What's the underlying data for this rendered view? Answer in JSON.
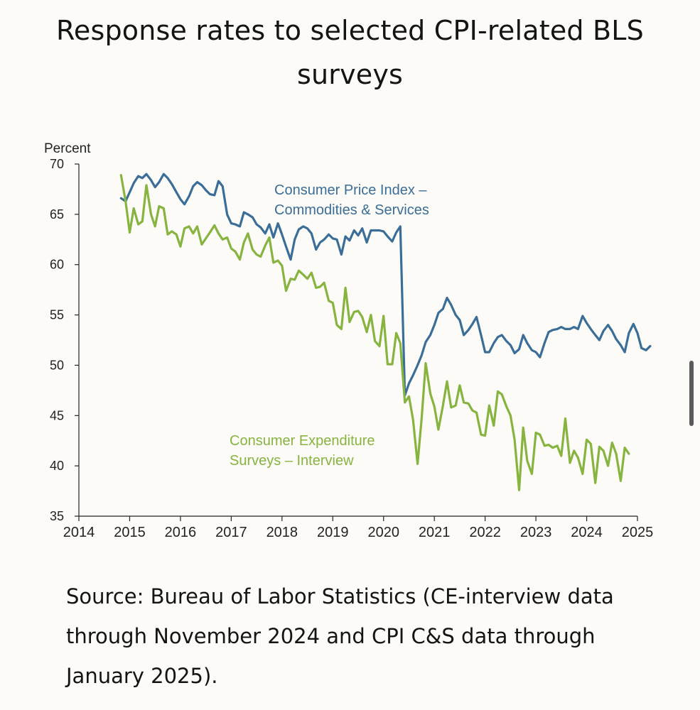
{
  "title": "Response rates to selected CPI-related BLS surveys",
  "source": "Source: Bureau of Labor Statistics (CE-interview data through November 2024 and CPI C&S data through January 2025).",
  "chart_data": {
    "type": "line",
    "ylabel": "Percent",
    "ylim": [
      35,
      70
    ],
    "yticks": [
      "35",
      "40",
      "45",
      "50",
      "55",
      "60",
      "65",
      "70"
    ],
    "xlim": [
      2014,
      2025
    ],
    "xticks": [
      "2014",
      "2015",
      "2016",
      "2017",
      "2018",
      "2019",
      "2020",
      "2021",
      "2022",
      "2023",
      "2024",
      "2025"
    ],
    "grid": false,
    "series": [
      {
        "name": "Consumer Price Index – Commodities & Services",
        "color": "#3a6d98",
        "points": [
          [
            2014.83,
            66.6
          ],
          [
            2014.92,
            66.3
          ],
          [
            2015.0,
            67.2
          ],
          [
            2015.08,
            68.1
          ],
          [
            2015.17,
            68.8
          ],
          [
            2015.25,
            68.6
          ],
          [
            2015.33,
            69.0
          ],
          [
            2015.42,
            68.4
          ],
          [
            2015.5,
            67.7
          ],
          [
            2015.58,
            68.2
          ],
          [
            2015.67,
            69.0
          ],
          [
            2015.75,
            68.6
          ],
          [
            2015.83,
            68.0
          ],
          [
            2015.92,
            67.2
          ],
          [
            2016.0,
            66.5
          ],
          [
            2016.08,
            66.0
          ],
          [
            2016.17,
            66.8
          ],
          [
            2016.25,
            67.8
          ],
          [
            2016.33,
            68.2
          ],
          [
            2016.42,
            67.9
          ],
          [
            2016.5,
            67.4
          ],
          [
            2016.58,
            67.0
          ],
          [
            2016.67,
            66.9
          ],
          [
            2016.75,
            68.3
          ],
          [
            2016.83,
            67.8
          ],
          [
            2016.92,
            65.0
          ],
          [
            2017.0,
            64.1
          ],
          [
            2017.08,
            64.0
          ],
          [
            2017.17,
            63.8
          ],
          [
            2017.25,
            65.2
          ],
          [
            2017.33,
            65.0
          ],
          [
            2017.42,
            64.7
          ],
          [
            2017.5,
            64.0
          ],
          [
            2017.58,
            63.7
          ],
          [
            2017.67,
            63.1
          ],
          [
            2017.75,
            64.0
          ],
          [
            2017.83,
            62.7
          ],
          [
            2017.92,
            64.1
          ],
          [
            2018.0,
            63.0
          ],
          [
            2018.08,
            61.8
          ],
          [
            2018.17,
            60.5
          ],
          [
            2018.25,
            62.5
          ],
          [
            2018.33,
            63.5
          ],
          [
            2018.42,
            63.8
          ],
          [
            2018.5,
            63.6
          ],
          [
            2018.58,
            63.1
          ],
          [
            2018.67,
            61.5
          ],
          [
            2018.75,
            62.2
          ],
          [
            2018.83,
            62.5
          ],
          [
            2018.92,
            63.0
          ],
          [
            2019.0,
            62.6
          ],
          [
            2019.08,
            62.5
          ],
          [
            2019.17,
            61.0
          ],
          [
            2019.25,
            62.8
          ],
          [
            2019.33,
            62.4
          ],
          [
            2019.42,
            63.4
          ],
          [
            2019.5,
            62.9
          ],
          [
            2019.58,
            63.6
          ],
          [
            2019.67,
            62.2
          ],
          [
            2019.75,
            63.4
          ],
          [
            2019.83,
            63.4
          ],
          [
            2019.92,
            63.4
          ],
          [
            2020.0,
            63.3
          ],
          [
            2020.08,
            62.8
          ],
          [
            2020.17,
            62.3
          ],
          [
            2020.25,
            63.2
          ],
          [
            2020.33,
            63.8
          ],
          [
            2020.42,
            47.0
          ],
          [
            2020.5,
            48.2
          ],
          [
            2020.58,
            49.0
          ],
          [
            2020.67,
            50.0
          ],
          [
            2020.75,
            51.0
          ],
          [
            2020.83,
            52.3
          ],
          [
            2020.92,
            53.0
          ],
          [
            2021.0,
            54.0
          ],
          [
            2021.08,
            55.2
          ],
          [
            2021.17,
            55.6
          ],
          [
            2021.25,
            56.7
          ],
          [
            2021.33,
            56.0
          ],
          [
            2021.42,
            55.0
          ],
          [
            2021.5,
            54.5
          ],
          [
            2021.58,
            53.0
          ],
          [
            2021.67,
            53.5
          ],
          [
            2021.75,
            54.1
          ],
          [
            2021.83,
            54.8
          ],
          [
            2021.92,
            53.0
          ],
          [
            2022.0,
            51.3
          ],
          [
            2022.08,
            51.3
          ],
          [
            2022.17,
            52.2
          ],
          [
            2022.25,
            52.8
          ],
          [
            2022.33,
            53.0
          ],
          [
            2022.42,
            52.4
          ],
          [
            2022.5,
            52.0
          ],
          [
            2022.58,
            51.2
          ],
          [
            2022.67,
            51.6
          ],
          [
            2022.75,
            53.0
          ],
          [
            2022.83,
            52.2
          ],
          [
            2022.92,
            51.5
          ],
          [
            2023.0,
            51.3
          ],
          [
            2023.08,
            50.8
          ],
          [
            2023.17,
            52.2
          ],
          [
            2023.25,
            53.3
          ],
          [
            2023.33,
            53.5
          ],
          [
            2023.42,
            53.6
          ],
          [
            2023.5,
            53.8
          ],
          [
            2023.58,
            53.6
          ],
          [
            2023.67,
            53.6
          ],
          [
            2023.75,
            53.8
          ],
          [
            2023.83,
            53.6
          ],
          [
            2023.92,
            54.9
          ],
          [
            2024.0,
            54.2
          ],
          [
            2024.08,
            53.6
          ],
          [
            2024.17,
            53.0
          ],
          [
            2024.25,
            52.5
          ],
          [
            2024.33,
            53.4
          ],
          [
            2024.42,
            54.0
          ],
          [
            2024.5,
            53.4
          ],
          [
            2024.58,
            52.6
          ],
          [
            2024.67,
            52.0
          ],
          [
            2024.75,
            51.3
          ],
          [
            2024.83,
            53.2
          ],
          [
            2024.92,
            54.1
          ],
          [
            2025.0,
            53.2
          ],
          [
            2025.08,
            51.7
          ],
          [
            2025.17,
            51.5
          ],
          [
            2025.25,
            51.9
          ]
        ]
      },
      {
        "name": "Consumer Expenditure Surveys – Interview",
        "color": "#86b43f",
        "points": [
          [
            2014.83,
            68.9
          ],
          [
            2014.92,
            66.3
          ],
          [
            2015.0,
            63.2
          ],
          [
            2015.08,
            65.6
          ],
          [
            2015.17,
            64.0
          ],
          [
            2015.25,
            64.3
          ],
          [
            2015.33,
            67.9
          ],
          [
            2015.42,
            65.0
          ],
          [
            2015.5,
            63.8
          ],
          [
            2015.58,
            65.8
          ],
          [
            2015.67,
            65.6
          ],
          [
            2015.75,
            63.0
          ],
          [
            2015.83,
            63.3
          ],
          [
            2015.92,
            63.0
          ],
          [
            2016.0,
            61.8
          ],
          [
            2016.08,
            63.6
          ],
          [
            2016.17,
            63.8
          ],
          [
            2016.25,
            63.1
          ],
          [
            2016.33,
            63.8
          ],
          [
            2016.42,
            62.0
          ],
          [
            2016.5,
            62.6
          ],
          [
            2016.58,
            63.2
          ],
          [
            2016.67,
            63.9
          ],
          [
            2016.75,
            63.1
          ],
          [
            2016.83,
            62.5
          ],
          [
            2016.92,
            62.7
          ],
          [
            2017.0,
            61.6
          ],
          [
            2017.08,
            61.3
          ],
          [
            2017.17,
            60.5
          ],
          [
            2017.25,
            62.2
          ],
          [
            2017.33,
            63.1
          ],
          [
            2017.42,
            61.5
          ],
          [
            2017.5,
            61.0
          ],
          [
            2017.58,
            60.8
          ],
          [
            2017.67,
            61.9
          ],
          [
            2017.75,
            62.7
          ],
          [
            2017.83,
            60.2
          ],
          [
            2017.92,
            60.4
          ],
          [
            2018.0,
            59.9
          ],
          [
            2018.08,
            57.4
          ],
          [
            2018.17,
            58.6
          ],
          [
            2018.25,
            58.5
          ],
          [
            2018.33,
            59.4
          ],
          [
            2018.42,
            59.0
          ],
          [
            2018.5,
            58.6
          ],
          [
            2018.58,
            59.2
          ],
          [
            2018.67,
            57.7
          ],
          [
            2018.75,
            57.8
          ],
          [
            2018.83,
            58.2
          ],
          [
            2018.92,
            56.4
          ],
          [
            2019.0,
            56.2
          ],
          [
            2019.08,
            54.0
          ],
          [
            2019.17,
            53.6
          ],
          [
            2019.25,
            57.7
          ],
          [
            2019.33,
            54.3
          ],
          [
            2019.42,
            55.3
          ],
          [
            2019.5,
            55.4
          ],
          [
            2019.58,
            54.8
          ],
          [
            2019.67,
            53.3
          ],
          [
            2019.75,
            55.0
          ],
          [
            2019.83,
            52.4
          ],
          [
            2019.92,
            51.9
          ],
          [
            2020.0,
            54.9
          ],
          [
            2020.08,
            50.1
          ],
          [
            2020.17,
            50.1
          ],
          [
            2020.25,
            53.2
          ],
          [
            2020.33,
            52.2
          ],
          [
            2020.42,
            46.3
          ],
          [
            2020.5,
            46.9
          ],
          [
            2020.58,
            44.6
          ],
          [
            2020.67,
            40.2
          ],
          [
            2020.75,
            44.7
          ],
          [
            2020.83,
            50.2
          ],
          [
            2020.92,
            47.2
          ],
          [
            2021.0,
            45.9
          ],
          [
            2021.08,
            43.6
          ],
          [
            2021.17,
            46.0
          ],
          [
            2021.25,
            48.4
          ],
          [
            2021.33,
            45.8
          ],
          [
            2021.42,
            46.0
          ],
          [
            2021.5,
            48.0
          ],
          [
            2021.58,
            46.3
          ],
          [
            2021.67,
            46.2
          ],
          [
            2021.75,
            45.5
          ],
          [
            2021.83,
            45.3
          ],
          [
            2021.92,
            43.1
          ],
          [
            2022.0,
            43.0
          ],
          [
            2022.08,
            46.0
          ],
          [
            2022.17,
            44.0
          ],
          [
            2022.25,
            47.4
          ],
          [
            2022.33,
            47.1
          ],
          [
            2022.42,
            45.9
          ],
          [
            2022.5,
            45.0
          ],
          [
            2022.58,
            42.6
          ],
          [
            2022.67,
            37.6
          ],
          [
            2022.75,
            43.8
          ],
          [
            2022.83,
            40.5
          ],
          [
            2022.92,
            39.2
          ],
          [
            2023.0,
            43.3
          ],
          [
            2023.08,
            43.1
          ],
          [
            2023.17,
            42.0
          ],
          [
            2023.25,
            42.1
          ],
          [
            2023.33,
            41.8
          ],
          [
            2023.42,
            42.0
          ],
          [
            2023.5,
            41.0
          ],
          [
            2023.58,
            44.7
          ],
          [
            2023.67,
            40.3
          ],
          [
            2023.75,
            41.5
          ],
          [
            2023.83,
            40.8
          ],
          [
            2023.92,
            39.2
          ],
          [
            2024.0,
            42.6
          ],
          [
            2024.08,
            42.2
          ],
          [
            2024.17,
            38.3
          ],
          [
            2024.25,
            41.9
          ],
          [
            2024.33,
            41.5
          ],
          [
            2024.42,
            40.0
          ],
          [
            2024.5,
            42.3
          ],
          [
            2024.58,
            41.2
          ],
          [
            2024.67,
            38.5
          ],
          [
            2024.75,
            41.8
          ],
          [
            2024.83,
            41.2
          ]
        ]
      }
    ],
    "annotations": [
      {
        "lines": [
          "Consumer Price Index –",
          "Commodities & Services"
        ],
        "color": "#3a6d98"
      },
      {
        "lines": [
          "Consumer Expenditure",
          "Surveys – Interview"
        ],
        "color": "#86b43f"
      }
    ]
  }
}
